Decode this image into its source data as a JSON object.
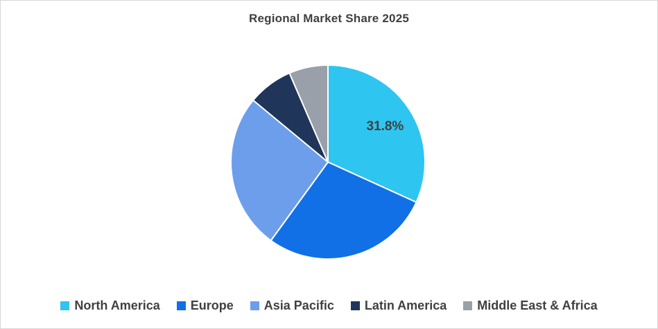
{
  "chart_data": {
    "type": "pie",
    "title": "Regional Market Share 2025",
    "categories": [
      "North America",
      "Europe",
      "Asia Pacific",
      "Latin America",
      "Middle East & Africa"
    ],
    "values": [
      31.8,
      28.2,
      26.0,
      7.5,
      6.5
    ],
    "colors": [
      "#2EC5F1",
      "#1170E5",
      "#6D9EEB",
      "#1F3559",
      "#9AA0A9"
    ],
    "data_labels": [
      "31.8%",
      "",
      "",
      "",
      ""
    ],
    "legend_position": "bottom",
    "start_angle_deg": 0,
    "stroke_color": "#ffffff",
    "label_color": "#404040"
  }
}
